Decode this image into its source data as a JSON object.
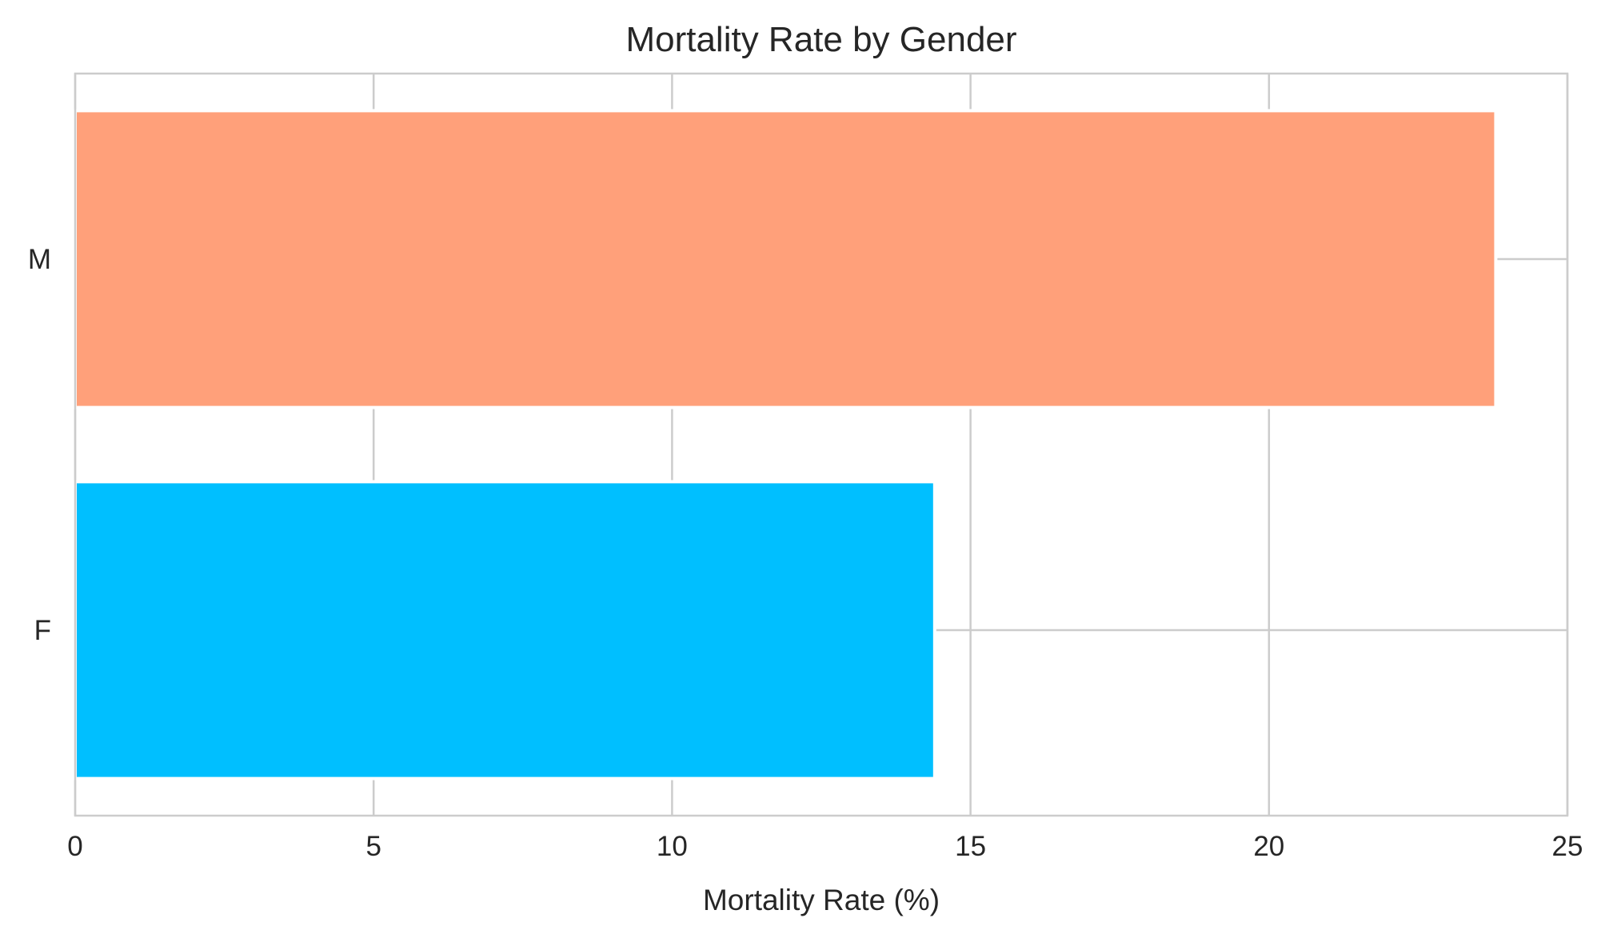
{
  "chart_data": {
    "type": "bar",
    "orientation": "horizontal",
    "title": "Mortality Rate by Gender",
    "xlabel": "Mortality Rate (%)",
    "ylabel": "",
    "categories": [
      "M",
      "F"
    ],
    "values": [
      23.8,
      14.4
    ],
    "colors": [
      "#FFA07A",
      "#00BFFF"
    ],
    "xlim": [
      0,
      25
    ],
    "xticks": [
      0,
      5,
      10,
      15,
      20,
      25
    ],
    "grid": true,
    "legend": "none"
  }
}
